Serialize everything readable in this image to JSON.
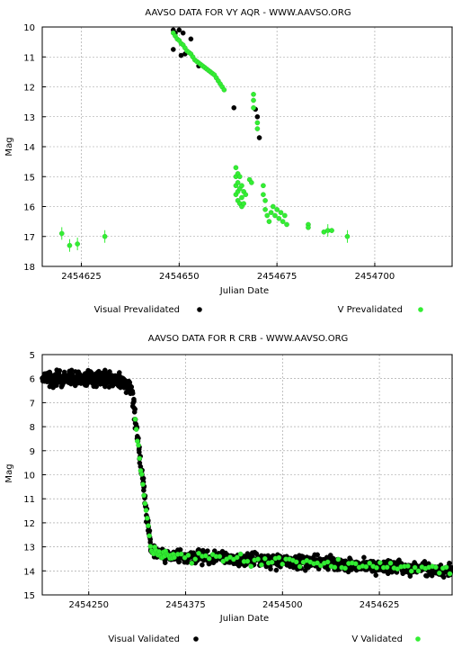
{
  "chart_data": [
    {
      "type": "scatter",
      "title": "AAVSO DATA FOR VY AQR - WWW.AAVSO.ORG",
      "xlabel": "Julian Date",
      "ylabel": "Mag",
      "xlim": [
        2454615,
        2454720
      ],
      "ylim": [
        18,
        10
      ],
      "y_inverted": true,
      "grid": true,
      "x_ticks": [
        2454625,
        2454650,
        2454675,
        2454700
      ],
      "y_ticks": [
        10,
        11,
        12,
        13,
        14,
        15,
        16,
        17,
        18
      ],
      "legend_position": "bottom",
      "series": [
        {
          "name": "Visual Prevalidated",
          "color": "#000000",
          "points": [
            [
              2454648.5,
              10.1
            ],
            [
              2454649,
              10.2
            ],
            [
              2454650,
              10.1
            ],
            [
              2454651,
              10.2
            ],
            [
              2454653,
              10.4
            ],
            [
              2454651.5,
              10.9
            ],
            [
              2454648.5,
              10.75
            ],
            [
              2454650.5,
              10.95
            ],
            [
              2454655,
              11.3
            ],
            [
              2454664,
              12.7
            ],
            [
              2454669.5,
              12.75
            ],
            [
              2454670,
              13.0
            ],
            [
              2454670.5,
              13.7
            ]
          ]
        },
        {
          "name": "V Prevalidated",
          "color": "#33ee33",
          "points": [
            [
              2454620,
              16.9
            ],
            [
              2454622,
              17.3
            ],
            [
              2454624,
              17.25
            ],
            [
              2454631,
              17.0
            ],
            [
              2454648.5,
              10.2
            ],
            [
              2454649,
              10.3
            ],
            [
              2454649.5,
              10.4
            ],
            [
              2454650,
              10.45
            ],
            [
              2454650.5,
              10.55
            ],
            [
              2454651,
              10.6
            ],
            [
              2454651.5,
              10.7
            ],
            [
              2454652,
              10.8
            ],
            [
              2454652.5,
              10.85
            ],
            [
              2454653,
              10.9
            ],
            [
              2454653.5,
              11.0
            ],
            [
              2454654,
              11.1
            ],
            [
              2454654.5,
              11.15
            ],
            [
              2454655,
              11.2
            ],
            [
              2454655.5,
              11.25
            ],
            [
              2454656,
              11.3
            ],
            [
              2454656.5,
              11.35
            ],
            [
              2454657,
              11.4
            ],
            [
              2454657.5,
              11.45
            ],
            [
              2454658,
              11.5
            ],
            [
              2454658.5,
              11.55
            ],
            [
              2454659,
              11.6
            ],
            [
              2454659.5,
              11.7
            ],
            [
              2454660,
              11.8
            ],
            [
              2454660.5,
              11.9
            ],
            [
              2454661,
              12.0
            ],
            [
              2454661.5,
              12.1
            ],
            [
              2454669,
              12.25
            ],
            [
              2454669,
              12.45
            ],
            [
              2454669,
              12.7
            ],
            [
              2454670,
              13.2
            ],
            [
              2454670,
              13.4
            ],
            [
              2454664.5,
              14.7
            ],
            [
              2454664.5,
              15.0
            ],
            [
              2454664.5,
              15.3
            ],
            [
              2454664.5,
              15.6
            ],
            [
              2454665,
              14.9
            ],
            [
              2454665,
              15.2
            ],
            [
              2454665,
              15.5
            ],
            [
              2454665,
              15.8
            ],
            [
              2454665.5,
              15.0
            ],
            [
              2454665.5,
              15.4
            ],
            [
              2454665.5,
              15.9
            ],
            [
              2454666,
              15.3
            ],
            [
              2454666,
              15.7
            ],
            [
              2454666,
              16.0
            ],
            [
              2454666.5,
              15.5
            ],
            [
              2454666.5,
              15.9
            ],
            [
              2454667,
              15.6
            ],
            [
              2454668,
              15.1
            ],
            [
              2454668.5,
              15.2
            ],
            [
              2454671.5,
              15.3
            ],
            [
              2454671.5,
              15.6
            ],
            [
              2454672,
              15.8
            ],
            [
              2454672,
              16.1
            ],
            [
              2454672.5,
              16.3
            ],
            [
              2454673,
              16.5
            ],
            [
              2454673.5,
              16.2
            ],
            [
              2454674,
              16.0
            ],
            [
              2454674.5,
              16.3
            ],
            [
              2454675,
              16.1
            ],
            [
              2454675.5,
              16.4
            ],
            [
              2454676,
              16.2
            ],
            [
              2454676.5,
              16.5
            ],
            [
              2454677,
              16.3
            ],
            [
              2454677.5,
              16.6
            ],
            [
              2454683,
              16.6
            ],
            [
              2454683,
              16.7
            ],
            [
              2454687,
              16.85
            ],
            [
              2454688,
              16.8
            ],
            [
              2454689,
              16.8
            ],
            [
              2454693,
              17.0
            ]
          ]
        }
      ]
    },
    {
      "type": "scatter",
      "title": "AAVSO DATA FOR R CRB - WWW.AAVSO.ORG",
      "xlabel": "Julian Date",
      "ylabel": "Mag",
      "xlim": [
        2454190,
        2454720
      ],
      "ylim": [
        15,
        5
      ],
      "y_inverted": true,
      "grid": true,
      "x_ticks": [
        2454250,
        2454375,
        2454500,
        2454625
      ],
      "y_ticks": [
        5,
        6,
        7,
        8,
        9,
        10,
        11,
        12,
        13,
        14,
        15
      ],
      "legend_position": "bottom",
      "series": [
        {
          "name": "Visual Validated",
          "color": "#000000",
          "points": []
        },
        {
          "name": "V Validated",
          "color": "#33ee33",
          "points": []
        }
      ]
    }
  ]
}
